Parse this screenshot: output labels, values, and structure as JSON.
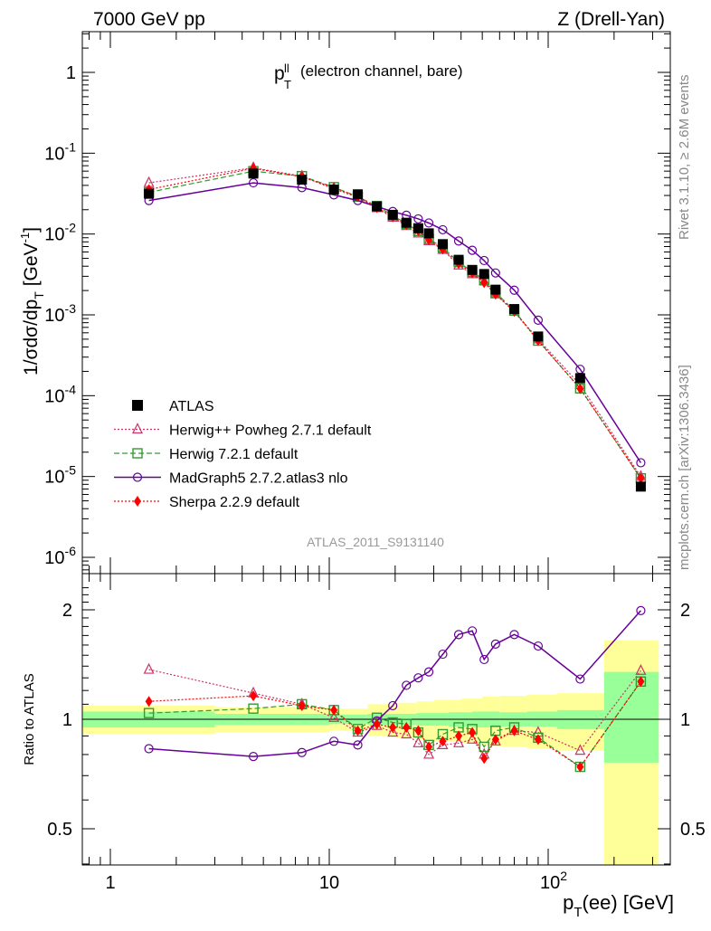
{
  "header": {
    "left": "7000 GeV pp",
    "right": "Z (Drell-Yan)"
  },
  "side_labels": {
    "top": "Rivet 3.1.10, ≥ 2.6M events",
    "bottom": "mcplots.cern.ch [arXiv:1306.3436]"
  },
  "chart_data": [
    {
      "type": "scatter",
      "panel": "main",
      "title": "p_T^ll (electron channel, bare)",
      "ylabel": "1/σdσ/dp_T [GeV^-1]",
      "analysis_tag": "ATLAS_2011_S9131140",
      "xscale": "log",
      "yscale": "log",
      "xlim": [
        0.75,
        320
      ],
      "ylim": [
        5e-07,
        3.5
      ],
      "y_tick_labels": [
        "10^-6",
        "10^-5",
        "10^-4",
        "10^-3",
        "10^-2",
        "10^-1",
        "1"
      ],
      "legend_position": "bottom-left",
      "x": [
        1.5,
        4.5,
        7.5,
        10.5,
        13.5,
        16.5,
        19.5,
        22.5,
        25.5,
        28.5,
        33.0,
        39.0,
        45.0,
        51.0,
        57.5,
        70.0,
        90.0,
        140.0,
        265.0
      ],
      "series": [
        {
          "name": "ATLAS",
          "color": "#000000",
          "marker": "square",
          "line": "none",
          "values": [
            0.0315,
            0.056,
            0.047,
            0.0355,
            0.031,
            0.022,
            0.0173,
            0.0138,
            0.0118,
            0.0102,
            0.0075,
            0.0048,
            0.0036,
            0.0032,
            0.00205,
            0.00118,
            0.00054,
            0.000165,
            7.5e-06
          ]
        },
        {
          "name": "Herwig++ Powheg 2.7.1 default",
          "color": "#cc3366",
          "marker": "triangle",
          "line": "dotted",
          "values": [
            0.043,
            0.066,
            0.052,
            0.036,
            0.0285,
            0.021,
            0.016,
            0.0126,
            0.0102,
            0.0082,
            0.0064,
            0.0041,
            0.0032,
            0.0026,
            0.0018,
            0.0011,
            0.0005,
            0.000136,
            1e-05
          ]
        },
        {
          "name": "Herwig 7.2.1 default",
          "color": "#339933",
          "marker": "open-square",
          "line": "dashed",
          "values": [
            0.0328,
            0.06,
            0.052,
            0.038,
            0.029,
            0.0222,
            0.017,
            0.0134,
            0.0109,
            0.0087,
            0.0068,
            0.0045,
            0.0034,
            0.0027,
            0.0019,
            0.00113,
            0.00048,
            0.000123,
            9.5e-06
          ]
        },
        {
          "name": "MadGraph5 2.7.2.atlas3 nlo",
          "color": "#660099",
          "marker": "circle",
          "line": "solid",
          "values": [
            0.026,
            0.043,
            0.0375,
            0.0305,
            0.026,
            0.0218,
            0.019,
            0.0171,
            0.0154,
            0.0137,
            0.0113,
            0.0082,
            0.0063,
            0.0047,
            0.0033,
            0.00202,
            0.00086,
            0.000212,
            1.48e-05
          ]
        },
        {
          "name": "Sherpa 2.2.9 default",
          "color": "#ff0000",
          "marker": "diamond",
          "line": "dotted",
          "values": [
            0.0355,
            0.065,
            0.051,
            0.0375,
            0.029,
            0.0212,
            0.0163,
            0.0131,
            0.011,
            0.0085,
            0.0065,
            0.0043,
            0.0033,
            0.0025,
            0.0018,
            0.0011,
            0.00048,
            0.000122,
            9.5e-06
          ]
        }
      ]
    },
    {
      "type": "line",
      "panel": "ratio",
      "ylabel": "Ratio to ATLAS",
      "xlabel": "p_T(ee) [GeV]",
      "xscale": "log",
      "xlim": [
        0.75,
        320
      ],
      "ylim": [
        0.35,
        2.35
      ],
      "x_tick_labels": [
        "1",
        "10",
        "10^2"
      ],
      "y_tick_labels": [
        "0.5",
        "1",
        "2"
      ],
      "x": [
        1.5,
        4.5,
        7.5,
        10.5,
        13.5,
        16.5,
        19.5,
        22.5,
        25.5,
        28.5,
        33.0,
        39.0,
        45.0,
        51.0,
        57.5,
        70.0,
        90.0,
        140.0,
        265.0
      ],
      "bands": [
        {
          "name": "inner",
          "color": "#99ff99",
          "bins": [
            [
              0.75,
              3,
              0.95,
              1.05
            ],
            [
              3,
              10,
              0.965,
              1.035
            ],
            [
              10,
              15,
              0.97,
              1.03
            ],
            [
              15,
              25,
              0.965,
              1.035
            ],
            [
              25,
              35,
              0.96,
              1.04
            ],
            [
              35,
              45,
              0.955,
              1.045
            ],
            [
              45,
              60,
              0.95,
              1.05
            ],
            [
              60,
              80,
              0.955,
              1.045
            ],
            [
              80,
              110,
              0.955,
              1.05
            ],
            [
              110,
              180,
              0.94,
              1.06
            ],
            [
              180,
              320,
              0.76,
              1.35
            ]
          ]
        },
        {
          "name": "outer",
          "color": "#ffff99",
          "bins": [
            [
              0.75,
              3,
              0.91,
              1.09
            ],
            [
              3,
              10,
              0.92,
              1.08
            ],
            [
              10,
              15,
              0.93,
              1.07
            ],
            [
              15,
              20,
              0.9,
              1.1
            ],
            [
              20,
              25,
              0.89,
              1.11
            ],
            [
              25,
              30,
              0.88,
              1.12
            ],
            [
              30,
              40,
              0.87,
              1.13
            ],
            [
              40,
              50,
              0.86,
              1.14
            ],
            [
              50,
              60,
              0.845,
              1.155
            ],
            [
              60,
              80,
              0.84,
              1.16
            ],
            [
              80,
              110,
              0.83,
              1.17
            ],
            [
              110,
              180,
              0.82,
              1.18
            ],
            [
              180,
              320,
              0.4,
              1.65
            ]
          ]
        }
      ],
      "series": [
        {
          "name": "Herwig++ Powheg 2.7.1 default",
          "color": "#cc3366",
          "marker": "triangle",
          "line": "dotted",
          "values": [
            1.37,
            1.18,
            1.1,
            1.01,
            0.92,
            0.96,
            0.92,
            0.91,
            0.86,
            0.8,
            0.85,
            0.86,
            0.88,
            0.8,
            0.87,
            0.93,
            0.92,
            0.82,
            1.36
          ]
        },
        {
          "name": "Herwig 7.2.1 default",
          "color": "#339933",
          "marker": "open-square",
          "line": "dashed",
          "values": [
            1.04,
            1.07,
            1.1,
            1.06,
            0.94,
            1.01,
            0.98,
            0.97,
            0.92,
            0.85,
            0.91,
            0.95,
            0.94,
            0.84,
            0.93,
            0.95,
            0.89,
            0.74,
            1.27
          ]
        },
        {
          "name": "MadGraph5 2.7.2.atlas3 nlo",
          "color": "#660099",
          "marker": "circle",
          "line": "solid",
          "values": [
            0.83,
            0.79,
            0.81,
            0.87,
            0.85,
            0.99,
            1.09,
            1.24,
            1.3,
            1.35,
            1.51,
            1.71,
            1.75,
            1.46,
            1.61,
            1.71,
            1.59,
            1.29,
            1.99
          ]
        },
        {
          "name": "Sherpa 2.2.9 default",
          "color": "#ff0000",
          "marker": "diamond",
          "line": "dotted",
          "values": [
            1.12,
            1.16,
            1.09,
            1.06,
            0.93,
            0.97,
            0.95,
            0.95,
            0.93,
            0.84,
            0.87,
            0.9,
            0.92,
            0.78,
            0.88,
            0.93,
            0.88,
            0.74,
            1.27
          ]
        }
      ]
    }
  ]
}
